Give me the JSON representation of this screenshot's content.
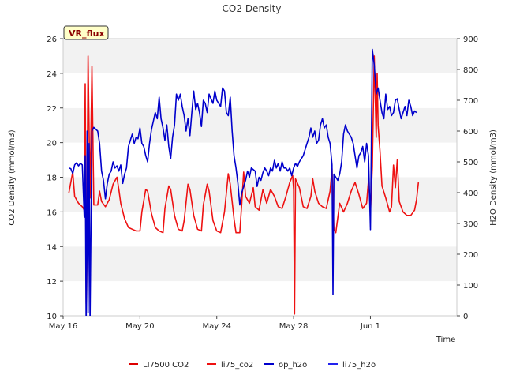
{
  "chart_data": {
    "type": "line",
    "title": "CO2 Density",
    "badge": "VR_flux",
    "xlabel": "Time",
    "ylabel_left": "CO2 Density (mmol/m3)",
    "ylabel_right": "H2O Density (mmol/m3)",
    "xlim_days": [
      0,
      20.5
    ],
    "x_ticks": [
      {
        "label": "May 16",
        "day": 0
      },
      {
        "label": "May 20",
        "day": 4
      },
      {
        "label": "May 24",
        "day": 8
      },
      {
        "label": "May 28",
        "day": 12
      },
      {
        "label": "Jun 1",
        "day": 16
      }
    ],
    "ylim_left": [
      10,
      26
    ],
    "yticks_left": [
      10,
      12,
      14,
      16,
      18,
      20,
      22,
      24,
      26
    ],
    "ylim_right": [
      0,
      900
    ],
    "yticks_right": [
      0,
      100,
      200,
      300,
      400,
      500,
      600,
      700,
      800,
      900
    ],
    "grid_bands": true,
    "legend_position": "bottom-center",
    "series": [
      {
        "name": "LI7500 CO2",
        "axis": "left",
        "color": "#dd0000",
        "points": []
      },
      {
        "name": "li75_co2",
        "axis": "left",
        "color": "#ee1111",
        "points": [
          [
            0.3,
            17.1
          ],
          [
            0.5,
            18.3
          ],
          [
            0.6,
            16.9
          ],
          [
            0.8,
            16.5
          ],
          [
            1.0,
            16.3
          ],
          [
            1.1,
            16.1
          ],
          [
            1.15,
            23.4
          ],
          [
            1.2,
            10.7
          ],
          [
            1.25,
            16.5
          ],
          [
            1.3,
            25.0
          ],
          [
            1.4,
            16.8
          ],
          [
            1.5,
            24.4
          ],
          [
            1.6,
            16.4
          ],
          [
            1.8,
            16.4
          ],
          [
            1.9,
            17.2
          ],
          [
            2.0,
            16.6
          ],
          [
            2.2,
            16.3
          ],
          [
            2.4,
            16.7
          ],
          [
            2.6,
            17.6
          ],
          [
            2.8,
            18.0
          ],
          [
            2.9,
            17.3
          ],
          [
            3.0,
            16.5
          ],
          [
            3.2,
            15.6
          ],
          [
            3.4,
            15.1
          ],
          [
            3.6,
            15.0
          ],
          [
            3.8,
            14.9
          ],
          [
            4.0,
            14.9
          ],
          [
            4.1,
            16.0
          ],
          [
            4.3,
            17.3
          ],
          [
            4.4,
            17.2
          ],
          [
            4.6,
            15.9
          ],
          [
            4.8,
            15.1
          ],
          [
            5.0,
            14.9
          ],
          [
            5.2,
            14.8
          ],
          [
            5.3,
            16.2
          ],
          [
            5.5,
            17.5
          ],
          [
            5.6,
            17.3
          ],
          [
            5.8,
            15.8
          ],
          [
            6.0,
            15.0
          ],
          [
            6.2,
            14.9
          ],
          [
            6.3,
            15.5
          ],
          [
            6.5,
            17.6
          ],
          [
            6.6,
            17.3
          ],
          [
            6.8,
            15.8
          ],
          [
            7.0,
            15.0
          ],
          [
            7.2,
            14.9
          ],
          [
            7.3,
            16.4
          ],
          [
            7.5,
            17.6
          ],
          [
            7.6,
            17.2
          ],
          [
            7.8,
            15.5
          ],
          [
            8.0,
            14.9
          ],
          [
            8.2,
            14.8
          ],
          [
            8.4,
            16.0
          ],
          [
            8.6,
            18.2
          ],
          [
            8.7,
            17.6
          ],
          [
            8.9,
            15.6
          ],
          [
            9.0,
            14.8
          ],
          [
            9.2,
            14.8
          ],
          [
            9.3,
            16.5
          ],
          [
            9.4,
            18.3
          ],
          [
            9.5,
            16.9
          ],
          [
            9.7,
            16.5
          ],
          [
            9.9,
            17.4
          ],
          [
            10.0,
            16.3
          ],
          [
            10.2,
            16.1
          ],
          [
            10.4,
            17.3
          ],
          [
            10.6,
            16.5
          ],
          [
            10.8,
            17.3
          ],
          [
            11.0,
            16.9
          ],
          [
            11.2,
            16.3
          ],
          [
            11.4,
            16.2
          ],
          [
            11.6,
            16.9
          ],
          [
            11.8,
            17.7
          ],
          [
            11.95,
            18.1
          ],
          [
            12.0,
            17.3
          ],
          [
            12.05,
            10.1
          ],
          [
            12.1,
            17.9
          ],
          [
            12.3,
            17.4
          ],
          [
            12.5,
            16.3
          ],
          [
            12.7,
            16.2
          ],
          [
            12.9,
            16.9
          ],
          [
            13.0,
            17.9
          ],
          [
            13.1,
            17.2
          ],
          [
            13.3,
            16.5
          ],
          [
            13.5,
            16.3
          ],
          [
            13.7,
            16.2
          ],
          [
            13.9,
            17.2
          ],
          [
            14.0,
            18.5
          ],
          [
            14.1,
            15.0
          ],
          [
            14.2,
            14.8
          ],
          [
            14.4,
            16.5
          ],
          [
            14.6,
            16.0
          ],
          [
            14.8,
            16.5
          ],
          [
            15.0,
            17.2
          ],
          [
            15.2,
            17.7
          ],
          [
            15.4,
            17.0
          ],
          [
            15.6,
            16.2
          ],
          [
            15.8,
            16.5
          ],
          [
            15.9,
            17.8
          ],
          [
            16.0,
            16.0
          ],
          [
            16.1,
            18.6
          ],
          [
            16.2,
            25.0
          ],
          [
            16.3,
            20.3
          ],
          [
            16.35,
            24.0
          ],
          [
            16.4,
            21.0
          ],
          [
            16.5,
            19.5
          ],
          [
            16.6,
            17.5
          ],
          [
            16.8,
            16.8
          ],
          [
            17.0,
            16.0
          ],
          [
            17.1,
            16.3
          ],
          [
            17.2,
            18.7
          ],
          [
            17.3,
            17.4
          ],
          [
            17.4,
            19.0
          ],
          [
            17.5,
            16.6
          ],
          [
            17.7,
            16.0
          ],
          [
            17.9,
            15.8
          ],
          [
            18.1,
            15.8
          ],
          [
            18.3,
            16.1
          ],
          [
            18.4,
            16.7
          ],
          [
            18.5,
            17.7
          ]
        ]
      },
      {
        "name": "op_h2o",
        "axis": "right",
        "color": "#0000cc",
        "points": [
          [
            0.3,
            480
          ],
          [
            0.4,
            478
          ],
          [
            0.5,
            462
          ],
          [
            0.6,
            490
          ],
          [
            0.7,
            497
          ],
          [
            0.8,
            487
          ],
          [
            0.9,
            495
          ],
          [
            1.0,
            490
          ],
          [
            1.1,
            320
          ],
          [
            1.15,
            520
          ],
          [
            1.2,
            -50
          ],
          [
            1.25,
            600
          ],
          [
            1.3,
            10
          ],
          [
            1.35,
            560
          ],
          [
            1.4,
            -20
          ],
          [
            1.5,
            600
          ],
          [
            1.6,
            612
          ],
          [
            1.8,
            600
          ],
          [
            1.9,
            560
          ],
          [
            2.0,
            470
          ],
          [
            2.1,
            440
          ],
          [
            2.2,
            380
          ],
          [
            2.3,
            430
          ],
          [
            2.4,
            460
          ],
          [
            2.5,
            470
          ],
          [
            2.6,
            500
          ],
          [
            2.7,
            480
          ],
          [
            2.8,
            487
          ],
          [
            2.9,
            470
          ],
          [
            3.0,
            490
          ],
          [
            3.1,
            430
          ],
          [
            3.2,
            460
          ],
          [
            3.3,
            480
          ],
          [
            3.4,
            550
          ],
          [
            3.6,
            590
          ],
          [
            3.7,
            560
          ],
          [
            3.8,
            580
          ],
          [
            3.9,
            575
          ],
          [
            4.0,
            610
          ],
          [
            4.1,
            560
          ],
          [
            4.2,
            550
          ],
          [
            4.3,
            520
          ],
          [
            4.4,
            500
          ],
          [
            4.5,
            560
          ],
          [
            4.6,
            605
          ],
          [
            4.8,
            660
          ],
          [
            4.9,
            640
          ],
          [
            5.0,
            710
          ],
          [
            5.1,
            640
          ],
          [
            5.2,
            610
          ],
          [
            5.3,
            570
          ],
          [
            5.4,
            620
          ],
          [
            5.5,
            550
          ],
          [
            5.6,
            510
          ],
          [
            5.7,
            580
          ],
          [
            5.8,
            620
          ],
          [
            5.9,
            720
          ],
          [
            6.0,
            700
          ],
          [
            6.1,
            720
          ],
          [
            6.2,
            680
          ],
          [
            6.3,
            650
          ],
          [
            6.4,
            600
          ],
          [
            6.5,
            640
          ],
          [
            6.6,
            585
          ],
          [
            6.7,
            660
          ],
          [
            6.8,
            730
          ],
          [
            6.9,
            670
          ],
          [
            7.0,
            690
          ],
          [
            7.1,
            660
          ],
          [
            7.2,
            615
          ],
          [
            7.3,
            700
          ],
          [
            7.4,
            690
          ],
          [
            7.5,
            660
          ],
          [
            7.6,
            720
          ],
          [
            7.7,
            705
          ],
          [
            7.8,
            690
          ],
          [
            7.9,
            730
          ],
          [
            8.0,
            700
          ],
          [
            8.2,
            680
          ],
          [
            8.3,
            740
          ],
          [
            8.4,
            730
          ],
          [
            8.5,
            660
          ],
          [
            8.6,
            650
          ],
          [
            8.7,
            710
          ],
          [
            8.8,
            600
          ],
          [
            8.9,
            520
          ],
          [
            9.0,
            480
          ],
          [
            9.1,
            430
          ],
          [
            9.2,
            360
          ],
          [
            9.3,
            400
          ],
          [
            9.4,
            420
          ],
          [
            9.5,
            440
          ],
          [
            9.6,
            470
          ],
          [
            9.7,
            450
          ],
          [
            9.8,
            480
          ],
          [
            9.9,
            475
          ],
          [
            10.0,
            470
          ],
          [
            10.1,
            420
          ],
          [
            10.2,
            450
          ],
          [
            10.3,
            440
          ],
          [
            10.4,
            465
          ],
          [
            10.5,
            480
          ],
          [
            10.6,
            470
          ],
          [
            10.7,
            455
          ],
          [
            10.8,
            480
          ],
          [
            10.9,
            470
          ],
          [
            11.0,
            505
          ],
          [
            11.1,
            480
          ],
          [
            11.2,
            495
          ],
          [
            11.3,
            470
          ],
          [
            11.4,
            500
          ],
          [
            11.5,
            480
          ],
          [
            11.6,
            480
          ],
          [
            11.7,
            470
          ],
          [
            11.8,
            480
          ],
          [
            11.9,
            455
          ],
          [
            12.0,
            480
          ],
          [
            12.1,
            495
          ],
          [
            12.2,
            485
          ],
          [
            12.3,
            500
          ],
          [
            12.4,
            510
          ],
          [
            12.5,
            520
          ],
          [
            12.6,
            540
          ],
          [
            12.7,
            560
          ],
          [
            12.8,
            580
          ],
          [
            12.9,
            610
          ],
          [
            13.0,
            580
          ],
          [
            13.1,
            600
          ],
          [
            13.2,
            560
          ],
          [
            13.3,
            570
          ],
          [
            13.4,
            620
          ],
          [
            13.5,
            640
          ],
          [
            13.6,
            610
          ],
          [
            13.7,
            620
          ],
          [
            13.8,
            580
          ],
          [
            13.9,
            560
          ],
          [
            14.0,
            490
          ],
          [
            14.05,
            70
          ],
          [
            14.1,
            460
          ],
          [
            14.2,
            450
          ],
          [
            14.3,
            440
          ],
          [
            14.4,
            460
          ],
          [
            14.5,
            500
          ],
          [
            14.6,
            590
          ],
          [
            14.7,
            620
          ],
          [
            14.8,
            600
          ],
          [
            14.9,
            590
          ],
          [
            15.0,
            580
          ],
          [
            15.1,
            560
          ],
          [
            15.2,
            520
          ],
          [
            15.3,
            480
          ],
          [
            15.4,
            520
          ],
          [
            15.5,
            530
          ],
          [
            15.6,
            550
          ],
          [
            15.7,
            500
          ],
          [
            15.8,
            560
          ],
          [
            15.9,
            520
          ],
          [
            16.0,
            280
          ],
          [
            16.1,
            865
          ],
          [
            16.2,
            815
          ],
          [
            16.3,
            720
          ],
          [
            16.4,
            740
          ],
          [
            16.5,
            700
          ],
          [
            16.6,
            660
          ],
          [
            16.7,
            640
          ],
          [
            16.8,
            720
          ],
          [
            16.9,
            670
          ],
          [
            17.0,
            680
          ],
          [
            17.1,
            650
          ],
          [
            17.2,
            660
          ],
          [
            17.3,
            700
          ],
          [
            17.4,
            705
          ],
          [
            17.5,
            670
          ],
          [
            17.6,
            640
          ],
          [
            17.7,
            660
          ],
          [
            17.8,
            680
          ],
          [
            17.9,
            650
          ],
          [
            18.0,
            700
          ],
          [
            18.1,
            680
          ],
          [
            18.2,
            650
          ],
          [
            18.3,
            665
          ],
          [
            18.4,
            660
          ]
        ]
      },
      {
        "name": "li75_h2o",
        "axis": "right",
        "color": "#2222ee",
        "points": []
      }
    ]
  }
}
